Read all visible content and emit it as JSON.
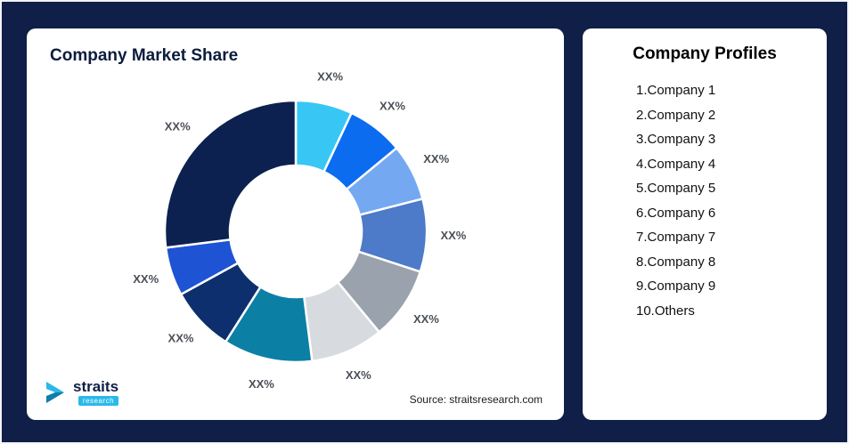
{
  "background_color": "#101f47",
  "left_card": {
    "title": "Company Market Share",
    "source": "Source: straitsresearch.com",
    "logo": {
      "name": "straits",
      "sub": "research",
      "icon": "straits-arrow-icon",
      "accent_color": "#29b9e8"
    }
  },
  "right_card": {
    "title": "Company Profiles",
    "items": [
      "1.Company 1",
      "2.Company 2",
      "3.Company 3",
      "4.Company 4",
      "5.Company 5",
      "6.Company 6",
      "7.Company 7",
      "8.Company 8",
      "9.Company 9",
      "10.Others"
    ]
  },
  "chart_data": {
    "type": "pie",
    "subtype": "donut",
    "title": "Company Market Share",
    "direction": "clockwise",
    "start_angle_deg": 0,
    "legend": "none",
    "labels": [
      "XX%",
      "XX%",
      "XX%",
      "XX%",
      "XX%",
      "XX%",
      "XX%",
      "XX%",
      "XX%",
      "XX%"
    ],
    "values": [
      7,
      7,
      7,
      9,
      9,
      9,
      11,
      8,
      6,
      27
    ],
    "colors": [
      "#38c6f4",
      "#0b6cf0",
      "#74a9f2",
      "#4d7ac9",
      "#9aa2ad",
      "#d7dadf",
      "#0c7fa5",
      "#0e2f6d",
      "#1e53d4",
      "#0c2150"
    ],
    "source": "Source: straitsresearch.com"
  }
}
